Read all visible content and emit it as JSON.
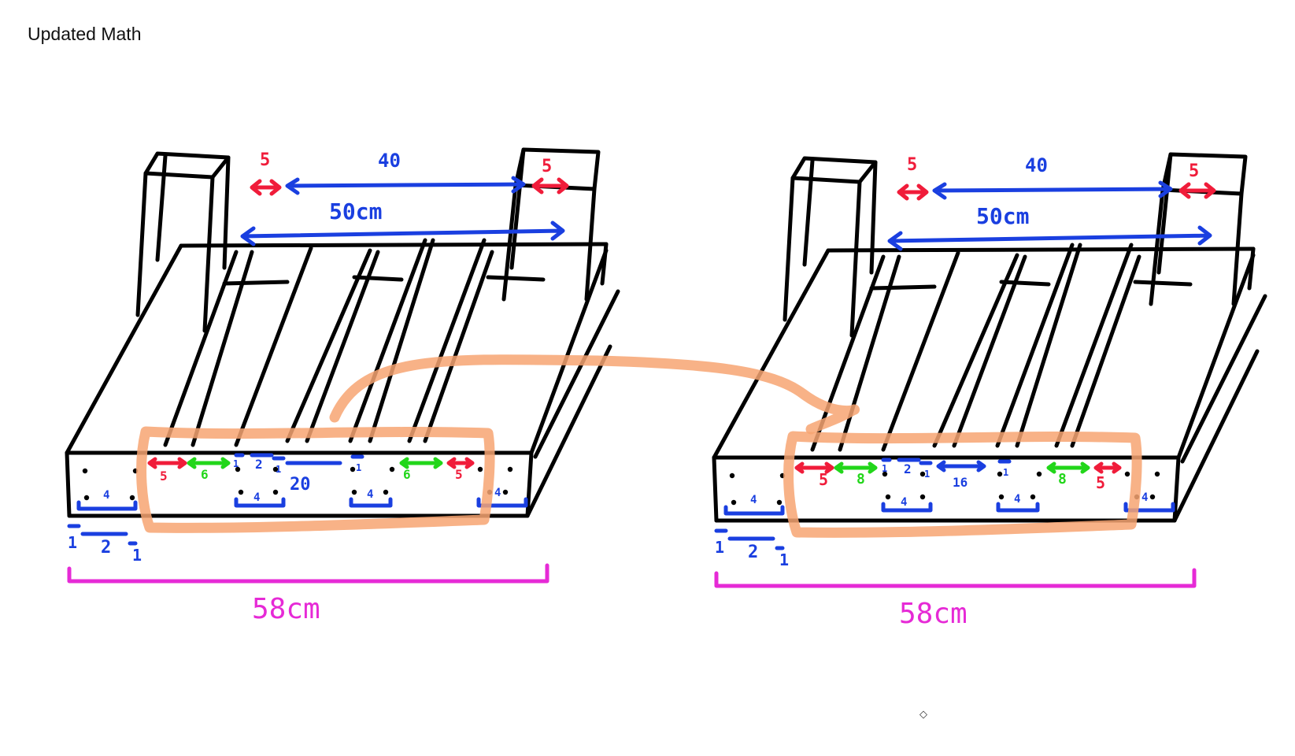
{
  "page": {
    "title": "Updated Math",
    "cursor_mark": "◇"
  },
  "colors": {
    "ink": "#000000",
    "dimension_blue": "#1a3fe0",
    "dimension_red": "#f01c3a",
    "dimension_green": "#22d61a",
    "dimension_magenta": "#e62ad6",
    "highlight_orange": "#f7a572"
  },
  "left_drawing": {
    "top_gap": "5",
    "top_inner_span": "40",
    "top_outer_span": "50cm",
    "top_gap_right": "5",
    "front_gap_left": "5",
    "front_green_left": "6",
    "front_one_a": "1",
    "front_two": "2",
    "front_one_b": "1",
    "front_center": "20",
    "front_one_c": "1",
    "front_green_right": "6",
    "front_gap_right": "5",
    "block_1": "4",
    "block_2": "4",
    "block_3": "4",
    "block_4": "4",
    "slat_one_a": "1",
    "slat_two": "2",
    "slat_one_b": "1",
    "total_width": "58cm"
  },
  "right_drawing": {
    "top_gap": "5",
    "top_inner_span": "40",
    "top_outer_span": "50cm",
    "top_gap_right": "5",
    "front_gap_left": "5",
    "front_green_left": "8",
    "front_one_a": "1",
    "front_two": "2",
    "front_one_b": "1",
    "front_center": "16",
    "front_one_c": "1",
    "front_green_right": "8",
    "front_gap_right": "5",
    "block_1": "4",
    "block_2": "4",
    "block_3": "4",
    "block_4": "4",
    "slat_one_a": "1",
    "slat_two": "2",
    "slat_one_b": "1",
    "total_width": "58cm"
  }
}
